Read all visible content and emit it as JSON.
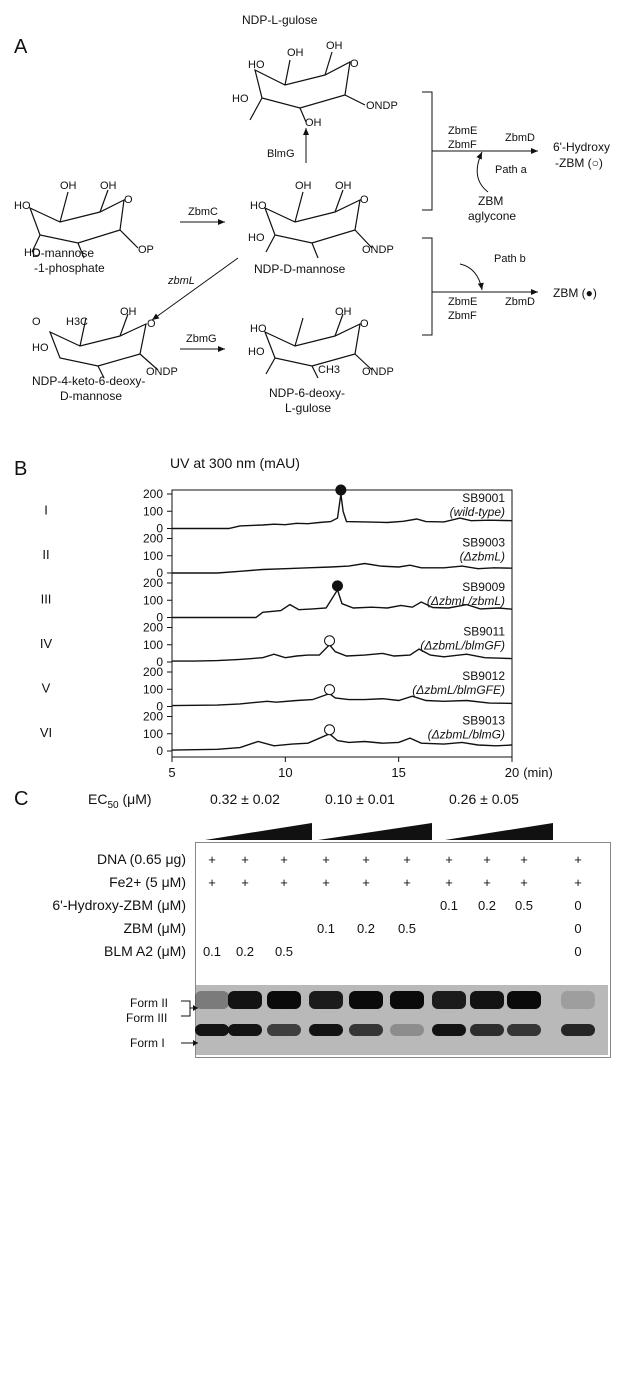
{
  "panel_a": {
    "letter": "A",
    "labels": {
      "gulose_name": "NDP-L-gulose",
      "d_mannose_phosphate_1": "D-mannose",
      "d_mannose_phosphate_2": "-1-phosphate",
      "ndp_d_mannose": "NDP-D-mannose",
      "keto_deoxy_1": "NDP-4-keto-6-deoxy-",
      "keto_deoxy_2": "D-mannose",
      "deoxy_gulose_1": "NDP-6-deoxy-",
      "deoxy_gulose_2": "L-gulose",
      "product_a_1": "6'-Hydroxy",
      "product_a_2": "-ZBM (○)",
      "product_b": "ZBM (●)",
      "aglycone_1": "ZBM",
      "aglycone_2": "aglycone"
    },
    "enzymes": {
      "zbmc": "ZbmC",
      "zbml": "zbmL",
      "zbmg": "ZbmG",
      "blmg": "BlmG",
      "zbme": "ZbmE",
      "zbmf": "ZbmF",
      "zbmd": "ZbmD",
      "path_a": "Path a",
      "path_b": "Path b"
    },
    "atoms": {
      "oh": "OH",
      "ho": "HO",
      "o": "O",
      "op": "OP",
      "ondp": "ONDP",
      "h3c": "H3C",
      "ch3": "CH3"
    }
  },
  "panel_b": {
    "letter": "B",
    "y_title": "UV at 300 nm (mAU)",
    "x_title": "(min)"
  },
  "chart_data": {
    "type": "line",
    "title": "UV at 300 nm (mAU)",
    "xlabel": "(min)",
    "ylabel": "UV at 300 nm (mAU)",
    "xlim": [
      5,
      20
    ],
    "ylim": [
      0,
      200
    ],
    "x_ticks": [
      "5",
      "10",
      "15",
      "20"
    ],
    "y_ticks": [
      "0",
      "100",
      "200"
    ],
    "grid": false,
    "traces": [
      {
        "roman": "I",
        "strain": "SB9001",
        "genotype": "(wild-type)",
        "marker": "filled",
        "marker_x": 12.45,
        "points": [
          [
            5,
            0
          ],
          [
            7.5,
            0
          ],
          [
            8,
            15
          ],
          [
            9,
            20
          ],
          [
            9.5,
            25
          ],
          [
            10,
            22
          ],
          [
            10.5,
            30
          ],
          [
            11,
            28
          ],
          [
            11.5,
            35
          ],
          [
            12,
            40
          ],
          [
            12.3,
            60
          ],
          [
            12.45,
            200
          ],
          [
            12.55,
            100
          ],
          [
            12.7,
            40
          ],
          [
            13.5,
            38
          ],
          [
            14.5,
            35
          ],
          [
            15.2,
            42
          ],
          [
            15.8,
            55
          ],
          [
            16.2,
            40
          ],
          [
            17,
            38
          ],
          [
            17.7,
            60
          ],
          [
            18.2,
            45
          ],
          [
            19,
            48
          ],
          [
            20,
            45
          ]
        ]
      },
      {
        "roman": "II",
        "strain": "SB9003",
        "genotype": "(ΔzbmL)",
        "marker": "none",
        "points": [
          [
            5,
            0
          ],
          [
            7,
            0
          ],
          [
            8,
            10
          ],
          [
            9,
            20
          ],
          [
            10,
            25
          ],
          [
            11,
            30
          ],
          [
            12,
            35
          ],
          [
            12.8,
            40
          ],
          [
            13.5,
            55
          ],
          [
            14.2,
            40
          ],
          [
            15,
            35
          ],
          [
            15.5,
            45
          ],
          [
            16,
            30
          ],
          [
            17,
            30
          ],
          [
            17.8,
            40
          ],
          [
            18.5,
            25
          ],
          [
            19.2,
            30
          ],
          [
            20,
            28
          ]
        ]
      },
      {
        "roman": "III",
        "strain": "SB9009",
        "genotype": "(ΔzbmL/zbmL)",
        "marker": "filled",
        "marker_x": 12.3,
        "points": [
          [
            5,
            0
          ],
          [
            8.7,
            0
          ],
          [
            9,
            30
          ],
          [
            9.8,
            40
          ],
          [
            10.2,
            75
          ],
          [
            10.6,
            45
          ],
          [
            11.2,
            50
          ],
          [
            11.8,
            55
          ],
          [
            12.3,
            160
          ],
          [
            12.5,
            80
          ],
          [
            13,
            55
          ],
          [
            13.8,
            60
          ],
          [
            14.5,
            55
          ],
          [
            15.1,
            70
          ],
          [
            15.6,
            60
          ],
          [
            16,
            90
          ],
          [
            16.5,
            58
          ],
          [
            17.2,
            55
          ],
          [
            18,
            75
          ],
          [
            18.6,
            50
          ],
          [
            19.4,
            55
          ],
          [
            20,
            48
          ]
        ]
      },
      {
        "roman": "IV",
        "strain": "SB9011",
        "genotype": "(ΔzbmL/blmGF)",
        "marker": "open",
        "marker_x": 11.95,
        "points": [
          [
            5,
            5
          ],
          [
            6,
            5
          ],
          [
            7,
            8
          ],
          [
            8,
            15
          ],
          [
            9,
            25
          ],
          [
            9.5,
            45
          ],
          [
            10,
            25
          ],
          [
            10.5,
            35
          ],
          [
            11,
            40
          ],
          [
            11.5,
            40
          ],
          [
            11.95,
            100
          ],
          [
            12.2,
            60
          ],
          [
            12.7,
            35
          ],
          [
            13.5,
            40
          ],
          [
            14.3,
            50
          ],
          [
            14.8,
            35
          ],
          [
            15.5,
            40
          ],
          [
            15.9,
            75
          ],
          [
            16.4,
            40
          ],
          [
            17,
            30
          ],
          [
            18,
            45
          ],
          [
            18.8,
            25
          ],
          [
            19.5,
            22
          ],
          [
            20,
            20
          ]
        ]
      },
      {
        "roman": "V",
        "strain": "SB9012",
        "genotype": "(ΔzbmL/blmGFE)",
        "marker": "open",
        "marker_x": 11.95,
        "points": [
          [
            5,
            5
          ],
          [
            7,
            8
          ],
          [
            8,
            15
          ],
          [
            9.2,
            30
          ],
          [
            9.6,
            25
          ],
          [
            10.5,
            35
          ],
          [
            11.2,
            40
          ],
          [
            11.95,
            75
          ],
          [
            12.2,
            50
          ],
          [
            12.8,
            40
          ],
          [
            13.5,
            40
          ],
          [
            14.3,
            45
          ],
          [
            15,
            35
          ],
          [
            15.6,
            60
          ],
          [
            16.2,
            35
          ],
          [
            17,
            30
          ],
          [
            18,
            35
          ],
          [
            19,
            20
          ],
          [
            20,
            18
          ]
        ]
      },
      {
        "roman": "VI",
        "strain": "SB9013",
        "genotype": "(ΔzbmL/blmG)",
        "marker": "open",
        "marker_x": 11.95,
        "points": [
          [
            5,
            5
          ],
          [
            7,
            10
          ],
          [
            8,
            20
          ],
          [
            8.8,
            55
          ],
          [
            9.5,
            30
          ],
          [
            10.3,
            40
          ],
          [
            11,
            45
          ],
          [
            11.95,
            100
          ],
          [
            12.3,
            60
          ],
          [
            12.8,
            50
          ],
          [
            13.5,
            55
          ],
          [
            14.3,
            45
          ],
          [
            15,
            50
          ],
          [
            15.5,
            75
          ],
          [
            16,
            45
          ],
          [
            17,
            40
          ],
          [
            17.8,
            50
          ],
          [
            18.5,
            35
          ],
          [
            19.3,
            30
          ],
          [
            20,
            35
          ]
        ]
      }
    ]
  },
  "panel_c": {
    "letter": "C",
    "ec50_label": "EC50 (μM)",
    "ec50_values": [
      "0.32 ± 0.02",
      "0.10 ± 0.01",
      "0.26 ± 0.05"
    ],
    "row_labels": [
      "DNA (0.65 μg)",
      "Fe2+ (5 μM)",
      "6'-Hydroxy-ZBM (μM)",
      "ZBM (μM)",
      "BLM A2 (μM)"
    ],
    "rows": [
      [
        "+",
        "+",
        "+",
        "+",
        "+",
        "+",
        "+",
        "+",
        "+",
        "+"
      ],
      [
        "+",
        "+",
        "+",
        "+",
        "+",
        "+",
        "+",
        "+",
        "+",
        "+"
      ],
      [
        "",
        "",
        "",
        "",
        "",
        "",
        "0.1",
        "0.2",
        "0.5",
        "0"
      ],
      [
        "",
        "",
        "",
        "0.1",
        "0.2",
        "0.5",
        "",
        "",
        "",
        "0"
      ],
      [
        "0.1",
        "0.2",
        "0.5",
        "",
        "",
        "",
        "",
        "",
        "",
        "0"
      ]
    ],
    "gel_labels": {
      "form_ii": "Form II",
      "form_iii": "Form III",
      "form_i": "Form I"
    },
    "upper_band_intensity": [
      0.35,
      0.95,
      1.0,
      0.9,
      1.0,
      1.0,
      0.9,
      0.95,
      1.0,
      0.15
    ],
    "lower_band_intensity": [
      0.95,
      0.95,
      0.7,
      0.95,
      0.75,
      0.25,
      0.95,
      0.8,
      0.75,
      0.85
    ]
  }
}
